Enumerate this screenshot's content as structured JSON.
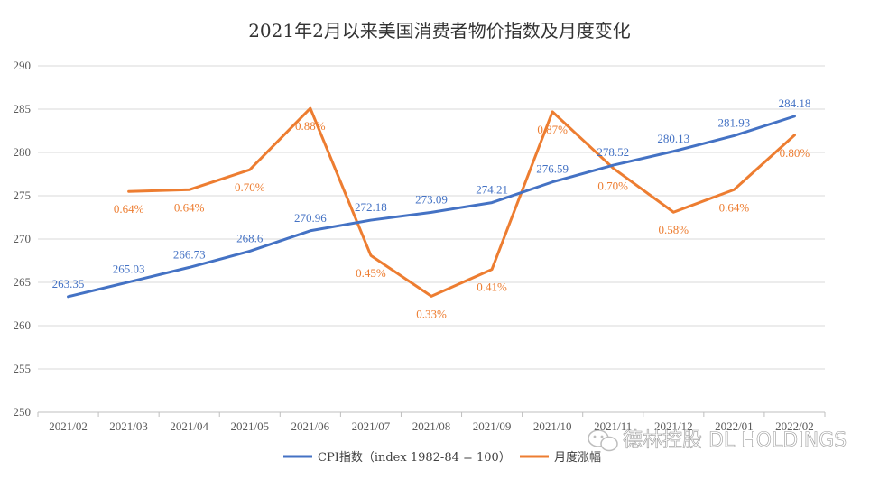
{
  "chart_data": {
    "type": "line",
    "title": "2021年2月以来美国消费者物价指数及月度变化",
    "categories": [
      "2021/02",
      "2021/03",
      "2021/04",
      "2021/05",
      "2021/06",
      "2021/07",
      "2021/08",
      "2021/09",
      "2021/10",
      "2021/11",
      "2021/12",
      "2022/01",
      "2022/02"
    ],
    "ylim": [
      250,
      290
    ],
    "yticks": [
      250,
      255,
      260,
      265,
      270,
      275,
      280,
      285,
      290
    ],
    "grid": true,
    "legend_position": "bottom",
    "series": [
      {
        "name": "CPI指数（index 1982-84 = 100）",
        "color": "#4472C4",
        "values": [
          263.35,
          265.03,
          266.73,
          268.6,
          270.96,
          272.18,
          273.09,
          274.21,
          276.59,
          278.52,
          280.13,
          281.93,
          284.18
        ],
        "labels": [
          "263.35",
          "265.03",
          "266.73",
          "268.6",
          "270.96",
          "272.18",
          "273.09",
          "274.21",
          "276.59",
          "278.52",
          "280.13",
          "281.93",
          "284.18"
        ]
      },
      {
        "name": "月度涨幅",
        "color": "#ED7D31",
        "values": [
          null,
          275.5,
          275.7,
          278,
          285.1,
          268.1,
          263.4,
          266.5,
          284.7,
          278.2,
          273.1,
          275.7,
          282
        ],
        "labels": [
          "",
          "0.64%",
          "0.64%",
          "0.70%",
          "0.88%",
          "0.45%",
          "0.33%",
          "0.41%",
          "0.87%",
          "0.70%",
          "0.58%",
          "0.64%",
          "0.80%"
        ]
      }
    ]
  },
  "watermark": {
    "text": "德林控股 DL HOLDINGS",
    "icon": "wechat-icon"
  }
}
